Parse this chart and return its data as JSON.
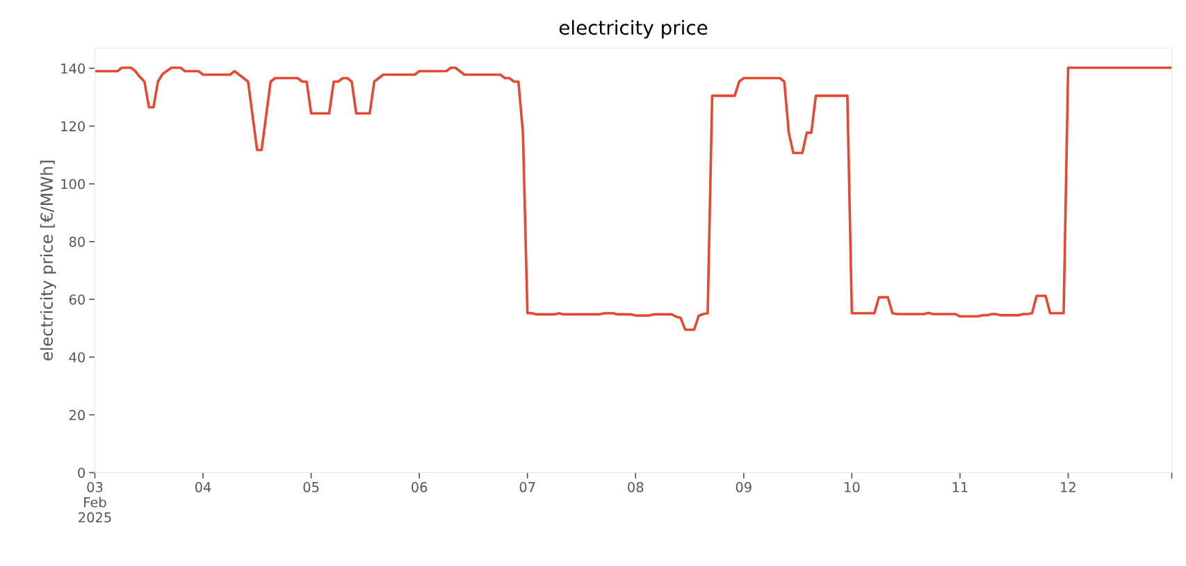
{
  "chart_data": {
    "type": "line",
    "title": "electricity price",
    "ylabel": "electricity price [€/MWh]",
    "x": [
      "2025-02-03T00:00",
      "2025-02-03T05:00",
      "2025-02-03T06:00",
      "2025-02-03T08:00",
      "2025-02-03T09:00",
      "2025-02-03T10:00",
      "2025-02-03T11:00",
      "2025-02-03T12:00",
      "2025-02-03T13:00",
      "2025-02-03T14:00",
      "2025-02-03T15:00",
      "2025-02-03T17:00",
      "2025-02-03T19:00",
      "2025-02-03T20:00",
      "2025-02-03T23:00",
      "2025-02-04T00:00",
      "2025-02-04T06:00",
      "2025-02-04T07:00",
      "2025-02-04T10:00",
      "2025-02-04T12:00",
      "2025-02-04T13:00",
      "2025-02-04T15:00",
      "2025-02-04T16:00",
      "2025-02-04T21:00",
      "2025-02-04T22:00",
      "2025-02-04T23:00",
      "2025-02-05T00:00",
      "2025-02-05T04:00",
      "2025-02-05T05:00",
      "2025-02-05T06:00",
      "2025-02-05T07:00",
      "2025-02-05T08:00",
      "2025-02-05T09:00",
      "2025-02-05T10:00",
      "2025-02-05T13:00",
      "2025-02-05T14:00",
      "2025-02-05T16:00",
      "2025-02-05T23:00",
      "2025-02-06T00:00",
      "2025-02-06T06:00",
      "2025-02-06T07:00",
      "2025-02-06T08:00",
      "2025-02-06T10:00",
      "2025-02-06T18:00",
      "2025-02-06T19:00",
      "2025-02-06T20:00",
      "2025-02-06T21:00",
      "2025-02-06T22:00",
      "2025-02-06T23:00",
      "2025-02-07T00:00",
      "2025-02-07T01:00",
      "2025-02-07T02:00",
      "2025-02-07T06:00",
      "2025-02-07T07:00",
      "2025-02-07T08:00",
      "2025-02-07T16:00",
      "2025-02-07T17:00",
      "2025-02-07T19:00",
      "2025-02-07T20:00",
      "2025-02-07T23:00",
      "2025-02-08T00:00",
      "2025-02-08T03:00",
      "2025-02-08T04:00",
      "2025-02-08T08:00",
      "2025-02-08T09:00",
      "2025-02-08T10:00",
      "2025-02-08T11:00",
      "2025-02-08T13:00",
      "2025-02-08T14:00",
      "2025-02-08T15:00",
      "2025-02-08T16:00",
      "2025-02-08T17:00",
      "2025-02-08T22:00",
      "2025-02-08T23:00",
      "2025-02-09T00:00",
      "2025-02-09T08:00",
      "2025-02-09T09:00",
      "2025-02-09T10:00",
      "2025-02-09T11:00",
      "2025-02-09T13:00",
      "2025-02-09T14:00",
      "2025-02-09T15:00",
      "2025-02-09T16:00",
      "2025-02-09T23:00",
      "2025-02-10T00:00",
      "2025-02-10T05:00",
      "2025-02-10T06:00",
      "2025-02-10T08:00",
      "2025-02-10T09:00",
      "2025-02-10T10:00",
      "2025-02-10T16:00",
      "2025-02-10T17:00",
      "2025-02-10T18:00",
      "2025-02-10T23:00",
      "2025-02-11T00:00",
      "2025-02-11T04:00",
      "2025-02-11T05:00",
      "2025-02-11T06:00",
      "2025-02-11T07:00",
      "2025-02-11T08:00",
      "2025-02-11T09:00",
      "2025-02-11T13:00",
      "2025-02-11T14:00",
      "2025-02-11T15:00",
      "2025-02-11T16:00",
      "2025-02-11T17:00",
      "2025-02-11T19:00",
      "2025-02-11T20:00",
      "2025-02-11T23:00",
      "2025-02-12T00:00",
      "2025-02-12T23:00"
    ],
    "series": [
      {
        "color": "#e24a33",
        "values": [
          139.0,
          139.0,
          140.2,
          140.2,
          139.0,
          137.0,
          135.4,
          126.5,
          126.5,
          135.4,
          138.0,
          140.2,
          140.2,
          139.0,
          139.0,
          137.8,
          137.8,
          139.0,
          135.4,
          111.7,
          111.7,
          135.4,
          136.6,
          136.6,
          135.4,
          135.4,
          124.4,
          124.4,
          135.4,
          135.4,
          136.6,
          136.6,
          135.4,
          124.4,
          124.4,
          135.4,
          137.8,
          137.8,
          139.0,
          139.0,
          140.2,
          140.2,
          137.8,
          137.8,
          136.6,
          136.6,
          135.4,
          135.4,
          117.7,
          55.2,
          55.2,
          54.8,
          54.8,
          55.2,
          54.8,
          54.8,
          55.2,
          55.2,
          54.8,
          54.8,
          54.4,
          54.4,
          54.8,
          54.8,
          54.0,
          53.6,
          49.5,
          49.5,
          54.3,
          54.9,
          55.2,
          130.5,
          130.5,
          135.4,
          136.6,
          136.6,
          135.4,
          117.7,
          110.7,
          110.7,
          117.7,
          117.7,
          130.5,
          130.5,
          55.2,
          55.2,
          60.7,
          60.7,
          55.2,
          54.9,
          54.9,
          55.3,
          54.9,
          54.9,
          54.1,
          54.1,
          54.5,
          54.5,
          54.9,
          54.9,
          54.5,
          54.5,
          54.9,
          54.9,
          55.2,
          61.2,
          61.2,
          55.2,
          55.2,
          140.2,
          140.2
        ]
      }
    ],
    "xlim": [
      "2025-02-03T00:00",
      "2025-02-12T23:00"
    ],
    "xticks": [
      {
        "value": "2025-02-03T00:00",
        "label": "03\nFeb\n2025"
      },
      {
        "value": "2025-02-04T00:00",
        "label": "04"
      },
      {
        "value": "2025-02-05T00:00",
        "label": "05"
      },
      {
        "value": "2025-02-06T00:00",
        "label": "06"
      },
      {
        "value": "2025-02-07T00:00",
        "label": "07"
      },
      {
        "value": "2025-02-08T00:00",
        "label": "08"
      },
      {
        "value": "2025-02-09T00:00",
        "label": "09"
      },
      {
        "value": "2025-02-10T00:00",
        "label": "10"
      },
      {
        "value": "2025-02-11T00:00",
        "label": "11"
      },
      {
        "value": "2025-02-12T00:00",
        "label": "12"
      },
      {
        "value": "2025-02-12T23:00",
        "label": null
      }
    ],
    "ylim": [
      0,
      147
    ],
    "yticks": [
      0,
      20,
      40,
      60,
      80,
      100,
      120,
      140
    ],
    "grid": false,
    "legend": false,
    "marker": "none",
    "line_style": "solid"
  }
}
